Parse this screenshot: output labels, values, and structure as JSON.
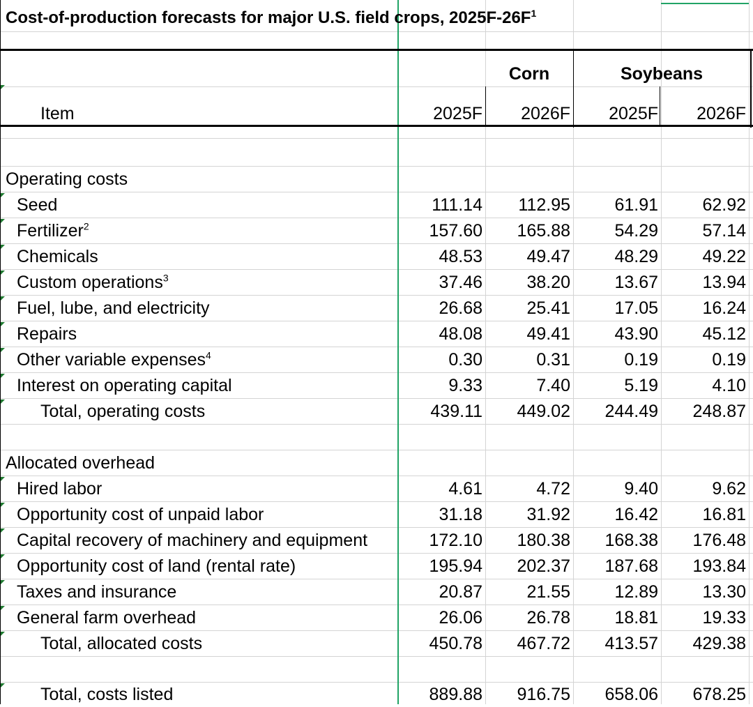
{
  "sheet": {
    "title": "Cost-of-production forecasts for major U.S. field crops, 2025F-26F",
    "title_note": "1",
    "header": {
      "item_label": "Item",
      "crops": [
        {
          "name": "Corn",
          "years": [
            "2025F",
            "2026F"
          ]
        },
        {
          "name": "Soybeans",
          "years": [
            "2025F",
            "2026F"
          ]
        }
      ]
    },
    "sections": [
      {
        "title": "Operating costs",
        "rows": [
          {
            "label": "Seed",
            "note": "",
            "values": [
              "111.14",
              "112.95",
              "61.91",
              "62.92"
            ]
          },
          {
            "label": "Fertilizer",
            "note": "2",
            "values": [
              "157.60",
              "165.88",
              "54.29",
              "57.14"
            ]
          },
          {
            "label": "Chemicals",
            "note": "",
            "values": [
              "48.53",
              "49.47",
              "48.29",
              "49.22"
            ]
          },
          {
            "label": "Custom operations",
            "note": "3",
            "values": [
              "37.46",
              "38.20",
              "13.67",
              "13.94"
            ]
          },
          {
            "label": "Fuel, lube, and electricity",
            "note": "",
            "values": [
              "26.68",
              "25.41",
              "17.05",
              "16.24"
            ]
          },
          {
            "label": "Repairs",
            "note": "",
            "values": [
              "48.08",
              "49.41",
              "43.90",
              "45.12"
            ]
          },
          {
            "label": "Other variable expenses",
            "note": "4",
            "values": [
              "0.30",
              "0.31",
              "0.19",
              "0.19"
            ]
          },
          {
            "label": "Interest on operating capital",
            "note": "",
            "values": [
              "9.33",
              "7.40",
              "5.19",
              "4.10"
            ]
          }
        ],
        "total": {
          "label": "Total, operating costs",
          "values": [
            "439.11",
            "449.02",
            "244.49",
            "248.87"
          ]
        }
      },
      {
        "title": "Allocated overhead",
        "rows": [
          {
            "label": "Hired labor",
            "note": "",
            "values": [
              "4.61",
              "4.72",
              "9.40",
              "9.62"
            ]
          },
          {
            "label": "Opportunity cost of unpaid labor",
            "note": "",
            "values": [
              "31.18",
              "31.92",
              "16.42",
              "16.81"
            ]
          },
          {
            "label": "Capital recovery of machinery and equipment",
            "note": "",
            "values": [
              "172.10",
              "180.38",
              "168.38",
              "176.48"
            ]
          },
          {
            "label": "Opportunity cost of land (rental rate)",
            "note": "",
            "values": [
              "195.94",
              "202.37",
              "187.68",
              "193.84"
            ]
          },
          {
            "label": "Taxes and insurance",
            "note": "",
            "values": [
              "20.87",
              "21.55",
              "12.89",
              "13.30"
            ]
          },
          {
            "label": "General farm overhead",
            "note": "",
            "values": [
              "26.06",
              "26.78",
              "18.81",
              "19.33"
            ]
          }
        ],
        "total": {
          "label": "Total, allocated costs",
          "values": [
            "450.78",
            "467.72",
            "413.57",
            "429.38"
          ]
        }
      }
    ],
    "grand_total": {
      "label": "Total, costs listed",
      "values": [
        "889.88",
        "916.75",
        "658.06",
        "678.25"
      ]
    }
  },
  "colors": {
    "gridline": "#d4d4d4",
    "selection": "#21a366",
    "comment_marker": "#1f7a30"
  }
}
